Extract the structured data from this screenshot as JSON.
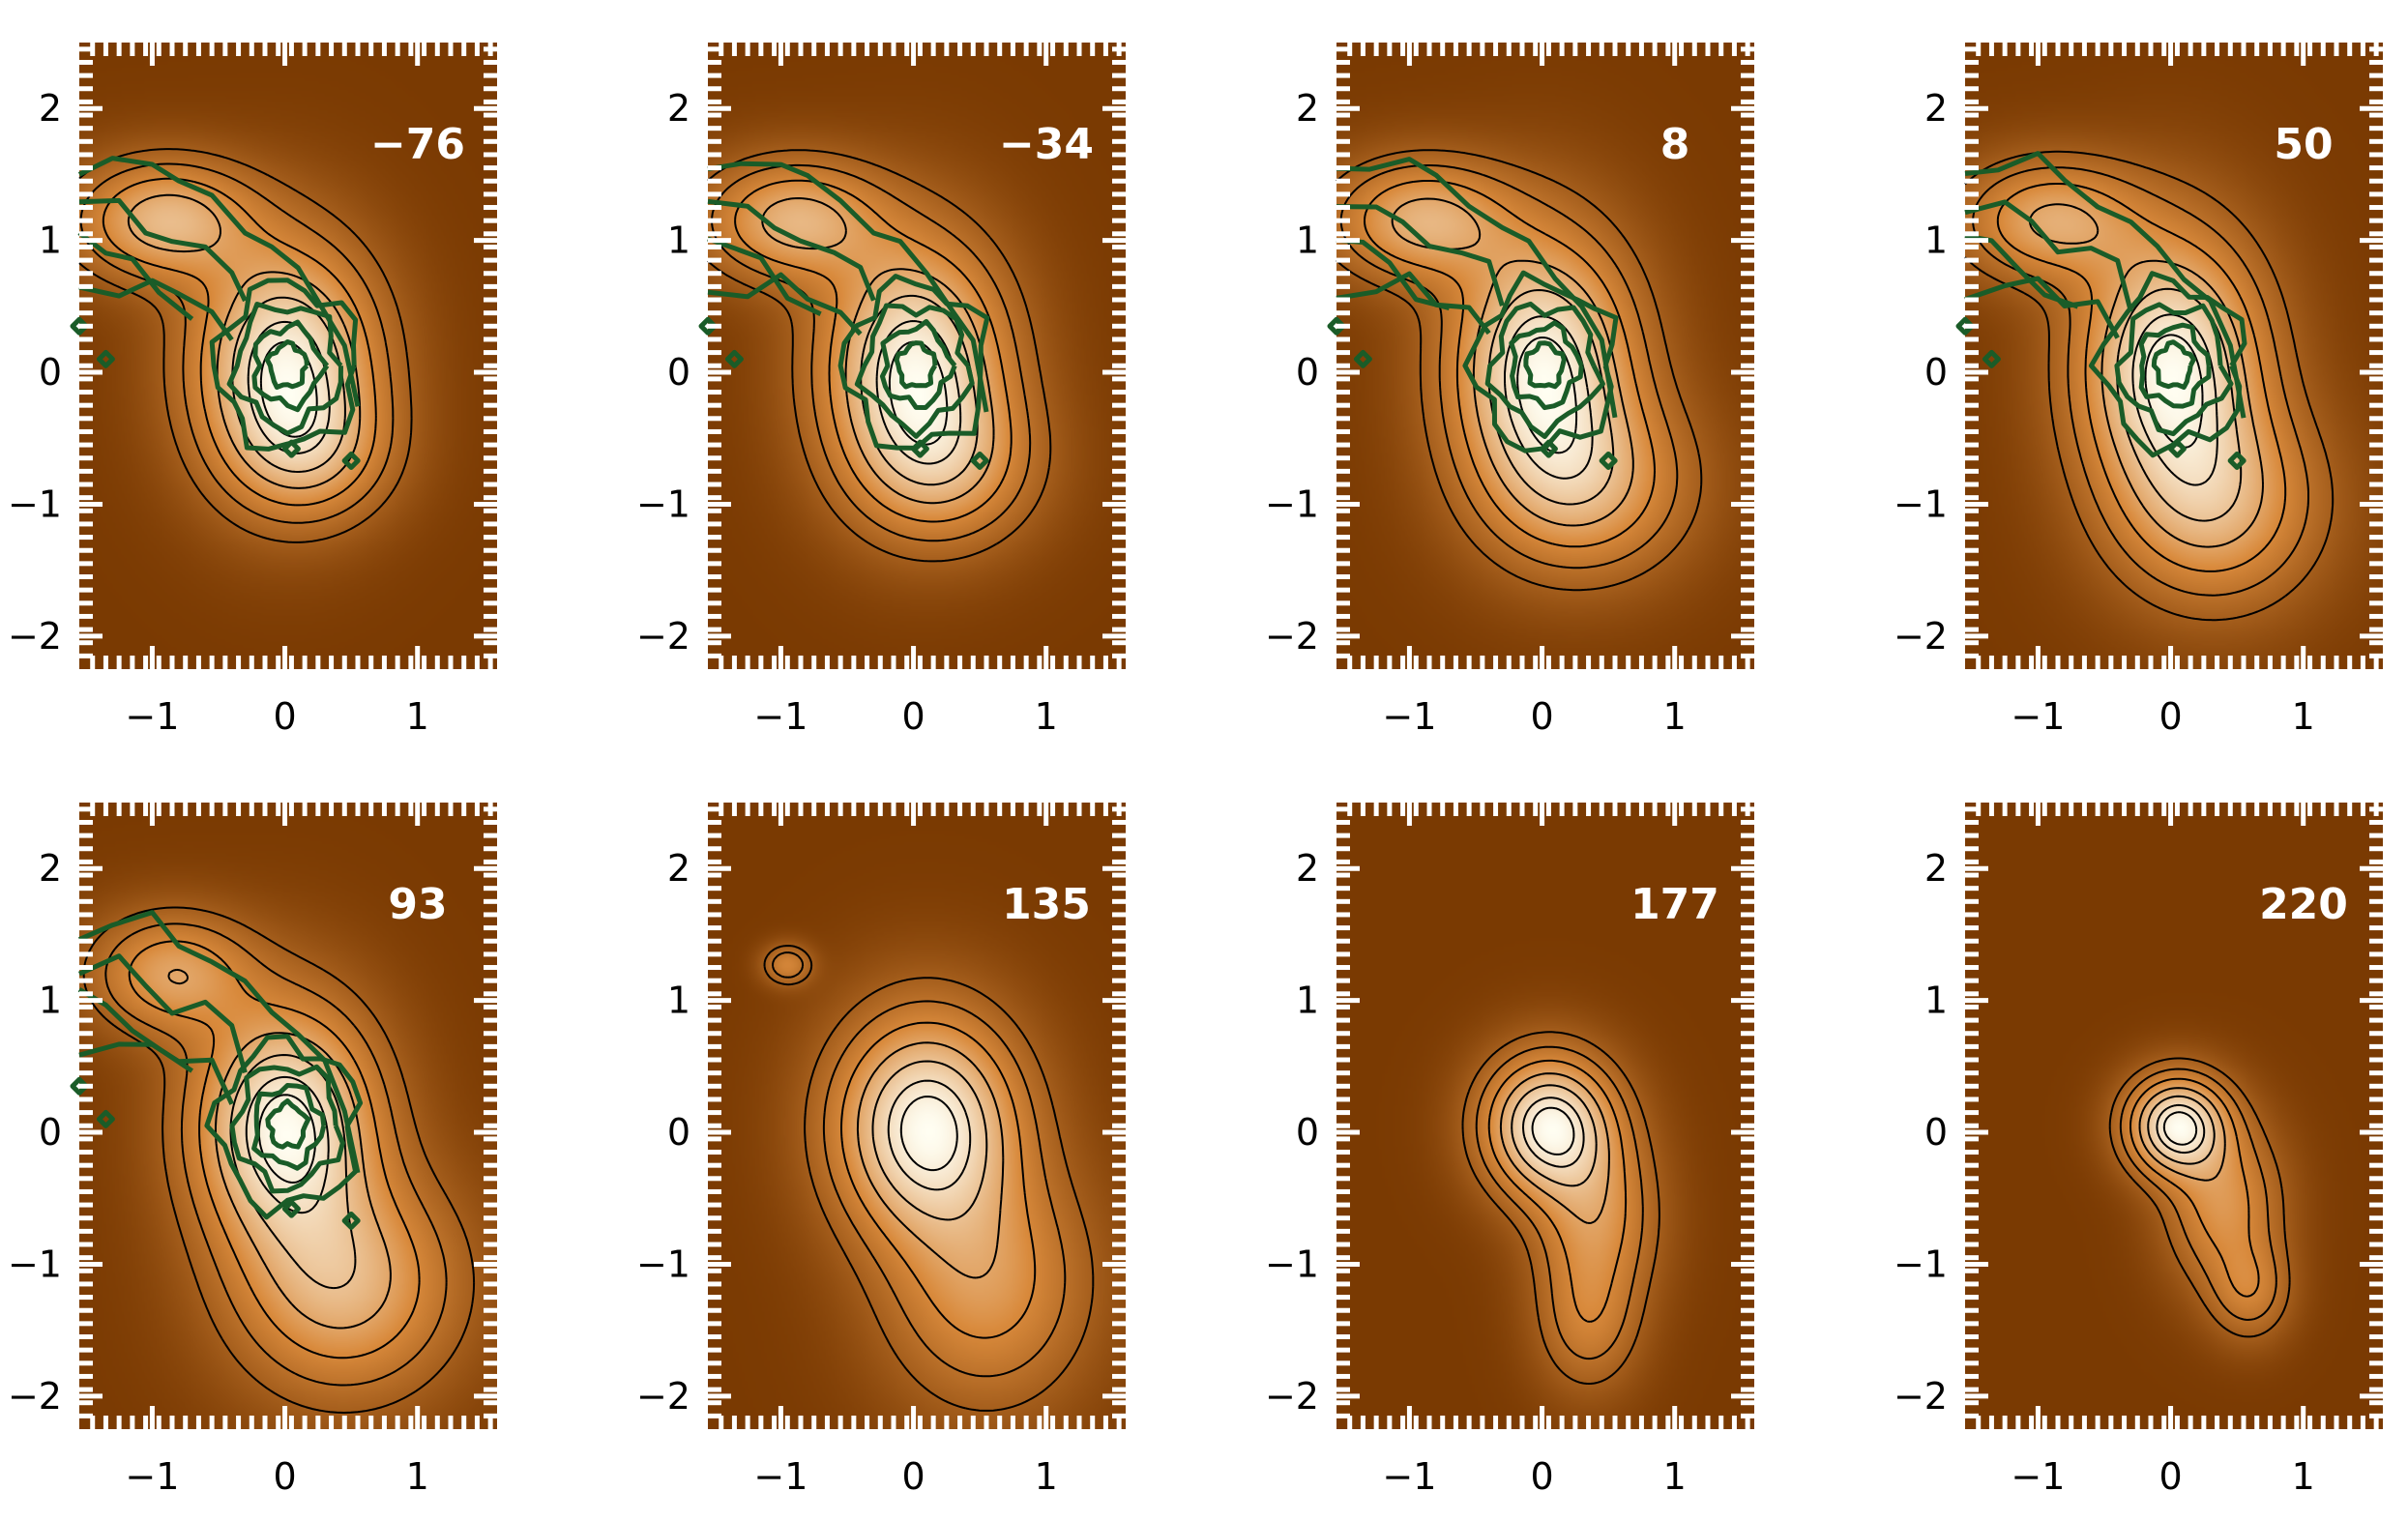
{
  "chart_data": {
    "type": "contour",
    "description_free": true,
    "x_ticks": [
      -1,
      0,
      1
    ],
    "y_ticks": [
      -2,
      -1,
      0,
      1,
      2
    ],
    "xlim": [
      -1.55,
      1.6
    ],
    "ylim": [
      -2.25,
      2.5
    ],
    "colormap": {
      "background": "#7a3a02",
      "mid": "#d98a3c",
      "peak": "#fffef2"
    },
    "contour_color": "#000000",
    "overlay_color": "#1a5c28",
    "panels": [
      {
        "label": "−76",
        "blobs": [
          {
            "cx": 0.0,
            "cy": 0.05,
            "sx": 0.45,
            "sy": 0.6,
            "amp": 1.0
          },
          {
            "cx": -0.9,
            "cy": 1.15,
            "sx": 0.45,
            "sy": 0.3,
            "amp": 0.65
          },
          {
            "cx": 0.2,
            "cy": -0.6,
            "sx": 0.4,
            "sy": 0.35,
            "amp": 0.35
          }
        ],
        "contour_levels": [
          0.12,
          0.22,
          0.35,
          0.5,
          0.65,
          0.8,
          0.9
        ],
        "overlay": true
      },
      {
        "label": "−34",
        "blobs": [
          {
            "cx": 0.0,
            "cy": 0.05,
            "sx": 0.45,
            "sy": 0.62,
            "amp": 1.0
          },
          {
            "cx": -0.9,
            "cy": 1.15,
            "sx": 0.45,
            "sy": 0.3,
            "amp": 0.62
          },
          {
            "cx": 0.25,
            "cy": -0.7,
            "sx": 0.45,
            "sy": 0.4,
            "amp": 0.42
          }
        ],
        "contour_levels": [
          0.12,
          0.22,
          0.35,
          0.5,
          0.65,
          0.8,
          0.9
        ],
        "overlay": true
      },
      {
        "label": "8",
        "blobs": [
          {
            "cx": 0.0,
            "cy": 0.05,
            "sx": 0.45,
            "sy": 0.65,
            "amp": 1.0
          },
          {
            "cx": -0.9,
            "cy": 1.15,
            "sx": 0.45,
            "sy": 0.3,
            "amp": 0.6
          },
          {
            "cx": 0.35,
            "cy": -0.85,
            "sx": 0.5,
            "sy": 0.45,
            "amp": 0.5
          }
        ],
        "contour_levels": [
          0.12,
          0.22,
          0.35,
          0.5,
          0.65,
          0.8,
          0.9
        ],
        "overlay": true
      },
      {
        "label": "50",
        "blobs": [
          {
            "cx": 0.0,
            "cy": 0.05,
            "sx": 0.45,
            "sy": 0.65,
            "amp": 1.0
          },
          {
            "cx": -0.9,
            "cy": 1.15,
            "sx": 0.45,
            "sy": 0.3,
            "amp": 0.55
          },
          {
            "cx": 0.35,
            "cy": -1.0,
            "sx": 0.5,
            "sy": 0.5,
            "amp": 0.55
          }
        ],
        "contour_levels": [
          0.12,
          0.22,
          0.35,
          0.5,
          0.65,
          0.8,
          0.9
        ],
        "overlay": true
      },
      {
        "label": "93",
        "blobs": [
          {
            "cx": 0.0,
            "cy": 0.05,
            "sx": 0.45,
            "sy": 0.6,
            "amp": 1.0
          },
          {
            "cx": -0.85,
            "cy": 1.2,
            "sx": 0.4,
            "sy": 0.3,
            "amp": 0.5
          },
          {
            "cx": 0.45,
            "cy": -1.15,
            "sx": 0.55,
            "sy": 0.55,
            "amp": 0.6
          }
        ],
        "contour_levels": [
          0.12,
          0.22,
          0.35,
          0.5,
          0.65,
          0.8,
          0.9
        ],
        "overlay": true
      },
      {
        "label": "135",
        "blobs": [
          {
            "cx": 0.1,
            "cy": 0.05,
            "sx": 0.45,
            "sy": 0.55,
            "amp": 1.0
          },
          {
            "cx": 0.55,
            "cy": -1.15,
            "sx": 0.5,
            "sy": 0.6,
            "amp": 0.45
          },
          {
            "cx": -0.95,
            "cy": 1.27,
            "sx": 0.12,
            "sy": 0.1,
            "amp": 0.35
          }
        ],
        "contour_levels": [
          0.12,
          0.22,
          0.35,
          0.5,
          0.65,
          0.8,
          0.9
        ],
        "overlay": false
      },
      {
        "label": "177",
        "blobs": [
          {
            "cx": 0.05,
            "cy": 0.05,
            "sx": 0.32,
            "sy": 0.35,
            "amp": 1.0
          },
          {
            "cx": 0.4,
            "cy": -0.65,
            "sx": 0.3,
            "sy": 0.45,
            "amp": 0.45
          },
          {
            "cx": 0.35,
            "cy": -1.45,
            "sx": 0.25,
            "sy": 0.35,
            "amp": 0.28
          }
        ],
        "contour_levels": [
          0.12,
          0.22,
          0.35,
          0.5,
          0.65,
          0.8,
          0.9
        ],
        "overlay": false
      },
      {
        "label": "220",
        "blobs": [
          {
            "cx": 0.05,
            "cy": 0.05,
            "sx": 0.25,
            "sy": 0.25,
            "amp": 1.0
          },
          {
            "cx": 0.4,
            "cy": -0.55,
            "sx": 0.28,
            "sy": 0.4,
            "amp": 0.45
          },
          {
            "cx": 0.6,
            "cy": -1.2,
            "sx": 0.2,
            "sy": 0.25,
            "amp": 0.3
          }
        ],
        "contour_levels": [
          0.12,
          0.22,
          0.35,
          0.5,
          0.65,
          0.8,
          0.9
        ],
        "overlay": false
      }
    ]
  }
}
